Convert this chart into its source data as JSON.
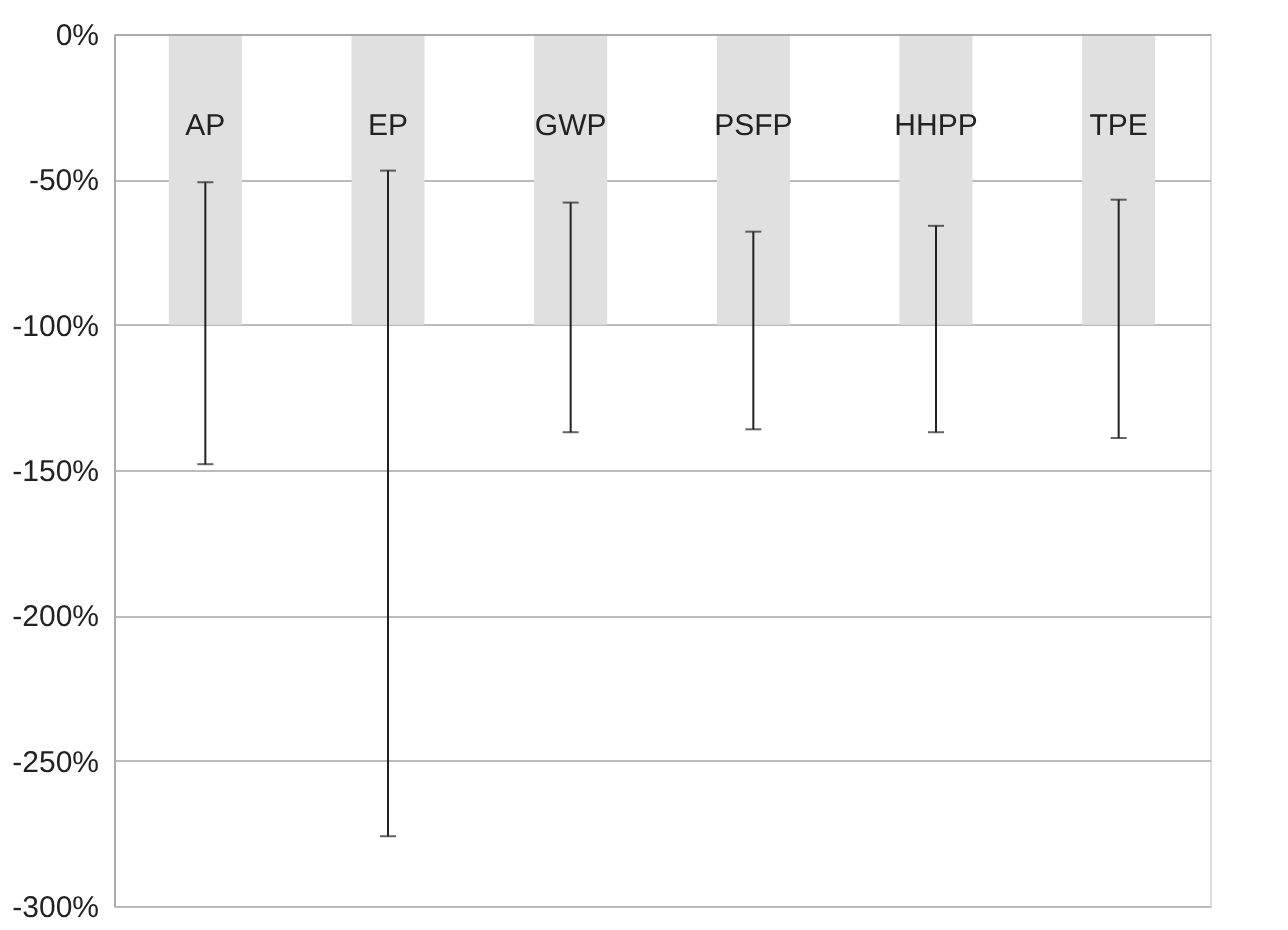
{
  "chart_data": {
    "type": "bar",
    "categories": [
      "AP",
      "EP",
      "GWP",
      "PSFP",
      "HHPP",
      "TPE"
    ],
    "values": [
      -100,
      -100,
      -100,
      -100,
      -100,
      -100
    ],
    "color": "#e0e0e0",
    "errors": [
      [
        -148,
        -51
      ],
      [
        -276,
        -47
      ],
      [
        -137,
        -58
      ],
      [
        -136,
        -68
      ],
      [
        -137,
        -66
      ],
      [
        -139,
        -57
      ]
    ],
    "ylim": [
      -300,
      0
    ],
    "yticks": [
      {
        "value": -300,
        "label": "-300%"
      },
      {
        "value": -250,
        "label": "-250%"
      },
      {
        "value": -200,
        "label": "-200%"
      },
      {
        "value": -150,
        "label": "-150%"
      },
      {
        "value": -100,
        "label": "-100%"
      },
      {
        "value": -50,
        "label": "-50%"
      },
      {
        "value": 0,
        "label": "0%"
      }
    ],
    "grid": "y"
  }
}
